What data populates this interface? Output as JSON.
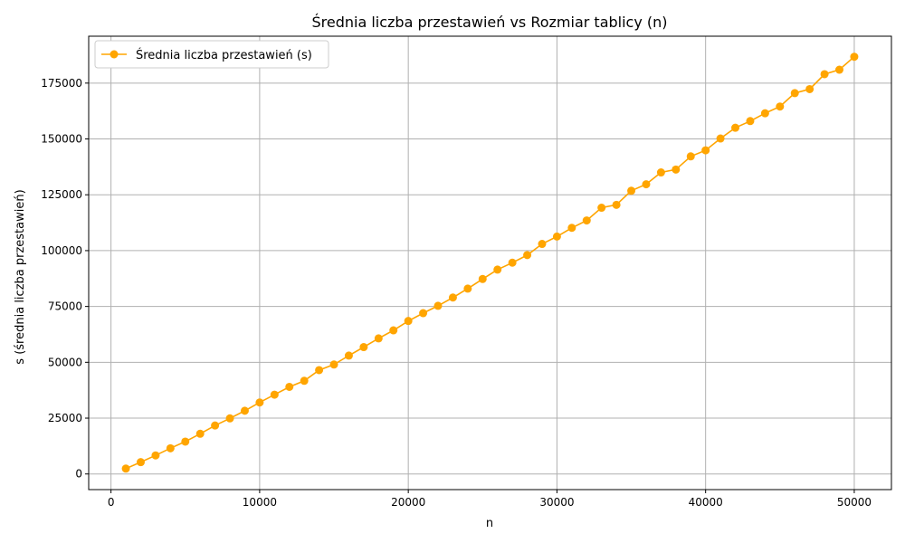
{
  "chart_data": {
    "type": "line",
    "title": "Średnia liczba przestawień vs Rozmiar tablicy (n)",
    "xlabel": "n",
    "ylabel": "s (średnia liczba przestawień)",
    "xlim": [
      -1500,
      52500
    ],
    "ylim": [
      -7000,
      196000
    ],
    "grid": true,
    "legend_position": "top-left",
    "xticks": [
      0,
      10000,
      20000,
      30000,
      40000,
      50000
    ],
    "xtick_labels": [
      "0",
      "10000",
      "20000",
      "30000",
      "40000",
      "50000"
    ],
    "yticks": [
      0,
      25000,
      50000,
      75000,
      100000,
      125000,
      150000,
      175000
    ],
    "ytick_labels": [
      "0",
      "25000",
      "50000",
      "75000",
      "100000",
      "125000",
      "150000",
      "175000"
    ],
    "color": "#ffa500",
    "series": [
      {
        "name": "Średnia liczba przestawień (s)",
        "marker": "circle",
        "x": [
          1000,
          2000,
          3000,
          4000,
          5000,
          6000,
          7000,
          8000,
          9000,
          10000,
          11000,
          12000,
          13000,
          14000,
          15000,
          16000,
          17000,
          18000,
          19000,
          20000,
          21000,
          22000,
          23000,
          24000,
          25000,
          26000,
          27000,
          28000,
          29000,
          30000,
          31000,
          32000,
          33000,
          34000,
          35000,
          36000,
          37000,
          38000,
          39000,
          40000,
          41000,
          42000,
          43000,
          44000,
          45000,
          46000,
          47000,
          48000,
          49000,
          50000
        ],
        "y": [
          2400,
          5300,
          8300,
          11500,
          14500,
          18000,
          21700,
          24900,
          28300,
          32000,
          35500,
          39000,
          41700,
          46500,
          49000,
          53000,
          56800,
          60700,
          64300,
          68500,
          72000,
          75300,
          79000,
          83000,
          87300,
          91500,
          94600,
          98000,
          103000,
          106300,
          110200,
          113500,
          119200,
          120500,
          126800,
          129700,
          135000,
          136300,
          142200,
          144900,
          150200,
          155000,
          158000,
          161500,
          164500,
          170500,
          172300,
          179000,
          181000,
          186800
        ]
      }
    ]
  }
}
